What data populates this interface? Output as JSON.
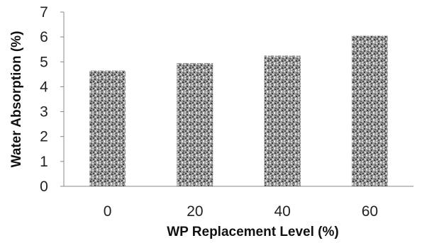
{
  "chart_data": {
    "type": "bar",
    "categories": [
      "0",
      "20",
      "40",
      "60"
    ],
    "values": [
      4.65,
      4.95,
      5.25,
      6.05
    ],
    "xlabel": "WP Replacement Level (%)",
    "ylabel": "Water Absorption (%)",
    "ylim": [
      0,
      7
    ],
    "yticks": [
      "0",
      "1",
      "2",
      "3",
      "4",
      "5",
      "6",
      "7"
    ],
    "grid": false,
    "bar_pattern": "speckled-gray",
    "colors": {
      "axis": "#888888",
      "bar_light": "#d4d4d4",
      "bar_dark": "#3c3c3c"
    }
  }
}
